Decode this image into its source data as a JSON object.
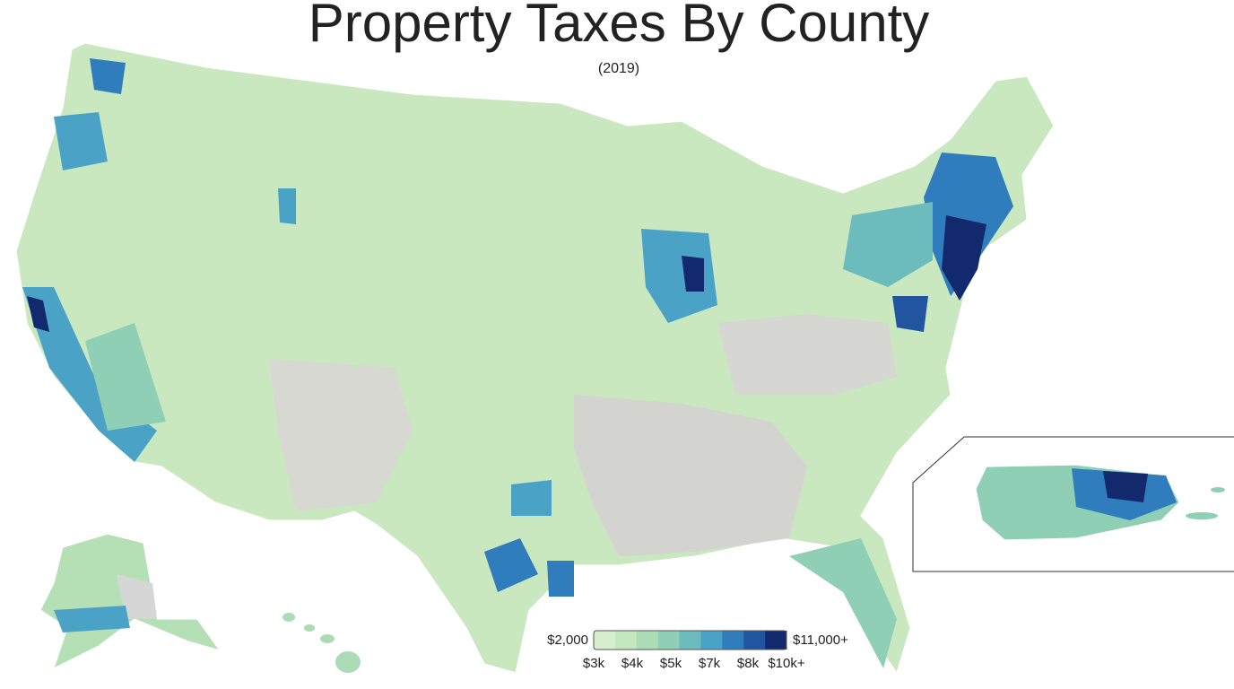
{
  "header": {
    "title": "Property Taxes By County",
    "subtitle": "(2019)"
  },
  "legend": {
    "min_label": "$2,000",
    "max_label": "$11,000+",
    "tick_labels": [
      "$3k",
      "$4k",
      "$5k",
      "$7k",
      "$8k",
      "$10k+"
    ],
    "colors": [
      "#d6eecb",
      "#c3e7bf",
      "#abdcb6",
      "#8ecfb5",
      "#6cbcbd",
      "#4aa3c7",
      "#2f7dbd",
      "#22559f",
      "#12296e"
    ]
  }
}
